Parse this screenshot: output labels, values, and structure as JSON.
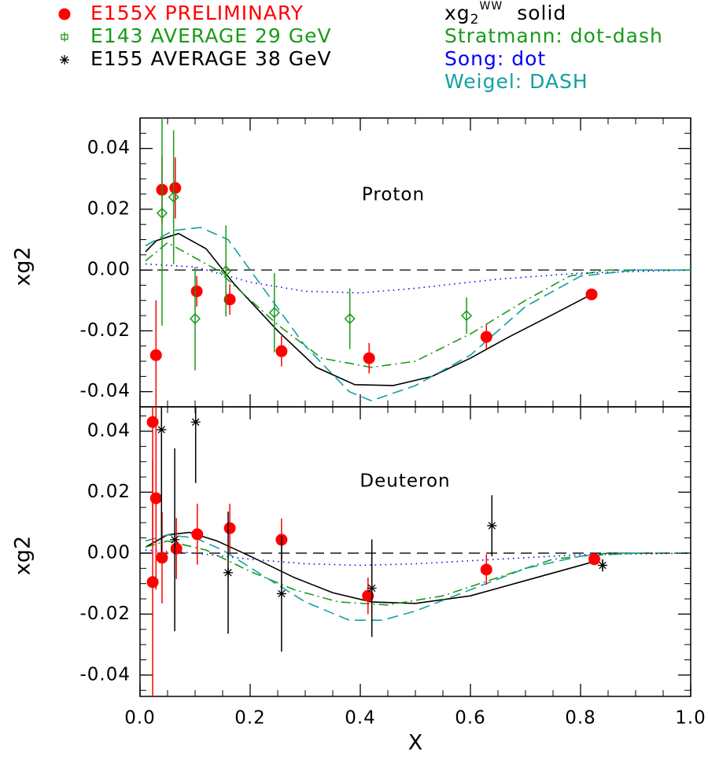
{
  "chart_data": [
    {
      "type": "scatter",
      "annotation": "Proton",
      "ylabel": "xg2",
      "xlim": [
        0,
        1
      ],
      "ylim": [
        -0.045,
        0.05
      ],
      "yticks": [
        -0.04,
        -0.02,
        {
          "value": 0,
          "label": "0.00"
        },
        0.02,
        0.04
      ],
      "zero_line": true,
      "series": [
        {
          "name": "E155X  PRELIMINARY",
          "color": "#ff0000",
          "marker": "circle",
          "x": [
            0.029,
            0.04,
            0.064,
            0.103,
            0.163,
            0.257,
            0.416,
            0.629,
            0.82
          ],
          "values": [
            -0.028,
            0.0264,
            0.027,
            -0.007,
            -0.0097,
            -0.0267,
            -0.029,
            -0.022,
            -0.008
          ],
          "errors": [
            0.018,
            0.011,
            0.01,
            0.005,
            0.005,
            0.005,
            0.005,
            0.004,
            0.001
          ]
        },
        {
          "name": "E143 AVERAGE 29 GeV",
          "color": "#1a9a1a",
          "marker": "diamond",
          "x": [
            0.04,
            0.061,
            0.1,
            0.156,
            0.244,
            0.381,
            0.593
          ],
          "values": [
            0.0187,
            0.024,
            -0.016,
            -0.0003,
            -0.014,
            -0.016,
            -0.015
          ],
          "errors": [
            0.037,
            0.022,
            0.017,
            0.015,
            0.013,
            0.01,
            0.006
          ]
        }
      ],
      "curves": [
        {
          "name_parts": [
            "xg",
            "2",
            "WW",
            "solid"
          ],
          "style": "solid",
          "color": "#000000",
          "x": [
            0.01,
            0.03,
            0.07,
            0.12,
            0.17,
            0.25,
            0.32,
            0.39,
            0.46,
            0.53,
            0.6,
            0.67,
            0.75,
            0.82
          ],
          "values": [
            0.006,
            0.0097,
            0.012,
            0.007,
            -0.0044,
            -0.02,
            -0.032,
            -0.0377,
            -0.038,
            -0.035,
            -0.029,
            -0.022,
            -0.0146,
            -0.008
          ]
        },
        {
          "name": "Stratmann: dot-dash",
          "style": "dotdash",
          "color": "#1a9a1a",
          "x": [
            0.01,
            0.05,
            0.14,
            0.25,
            0.33,
            0.42,
            0.5,
            0.6,
            0.7,
            0.78,
            0.85,
            1.0
          ],
          "values": [
            0.003,
            0.009,
            0.0,
            -0.018,
            -0.029,
            -0.032,
            -0.03,
            -0.021,
            -0.01,
            -0.002,
            0,
            0
          ]
        },
        {
          "name": "Song: dot",
          "style": "dot",
          "color": "#0000ff",
          "x": [
            0.01,
            0.1,
            0.2,
            0.3,
            0.4,
            0.5,
            0.65,
            0.8,
            1.0
          ],
          "values": [
            0.002,
            0.001,
            -0.004,
            -0.007,
            -0.0075,
            -0.006,
            -0.003,
            -0.001,
            0
          ]
        },
        {
          "name": "Weigel: DASH",
          "style": "dash",
          "color": "#13a0a0",
          "x": [
            0.01,
            0.06,
            0.11,
            0.16,
            0.22,
            0.3,
            0.38,
            0.42,
            0.5,
            0.6,
            0.7,
            0.8,
            0.9,
            1.0
          ],
          "values": [
            0.008,
            0.013,
            0.014,
            0.01,
            -0.005,
            -0.025,
            -0.04,
            -0.043,
            -0.038,
            -0.028,
            -0.012,
            -0.002,
            0,
            0
          ]
        }
      ]
    },
    {
      "type": "scatter",
      "annotation": "Deuteron",
      "ylabel": "xg2",
      "xlabel": "X",
      "xlim": [
        0,
        1
      ],
      "ylim": [
        -0.047,
        0.048
      ],
      "xticks": [
        {
          "value": 0,
          "label": "0.0"
        },
        0.2,
        0.4,
        0.6,
        0.8,
        {
          "value": 1,
          "label": "1.0"
        }
      ],
      "yticks": [
        -0.04,
        -0.02,
        {
          "value": 0,
          "label": "0.00"
        },
        0.02,
        0.04
      ],
      "zero_line": true,
      "series": [
        {
          "color": "#ff0000",
          "marker": "circle",
          "x": [
            0.023,
            0.023,
            0.029,
            0.04,
            0.066,
            0.104,
            0.163,
            0.257,
            0.414,
            0.629,
            0.825
          ],
          "values": [
            0.043,
            -0.0095,
            0.018,
            -0.0015,
            0.0015,
            0.0062,
            0.0082,
            0.0044,
            -0.014,
            -0.0054,
            -0.002
          ],
          "errors": [
            0.04,
            0.04,
            0.03,
            0.015,
            0.01,
            0.01,
            0.008,
            0.007,
            0.006,
            0.005,
            0.001
          ]
        },
        {
          "name": "E155 AVERAGE 38 GeV",
          "color": "#000000",
          "marker": "asterisk",
          "x": [
            0.039,
            0.063,
            0.101,
            0.16,
            0.257,
            0.421,
            0.639,
            0.84
          ],
          "values": [
            0.0405,
            0.0044,
            0.043,
            -0.0064,
            -0.0133,
            -0.0115,
            0.009,
            -0.004
          ],
          "errors": [
            0.04,
            0.03,
            0.02,
            0.02,
            0.019,
            0.016,
            0.01,
            0.002
          ]
        }
      ],
      "curves": [
        {
          "style": "solid",
          "color": "#000000",
          "x": [
            0.01,
            0.05,
            0.09,
            0.14,
            0.2,
            0.28,
            0.35,
            0.42,
            0.5,
            0.6,
            0.7,
            0.82
          ],
          "values": [
            0.002,
            0.006,
            0.0068,
            0.004,
            -0.001,
            -0.008,
            -0.013,
            -0.016,
            -0.0165,
            -0.014,
            -0.009,
            -0.003
          ]
        },
        {
          "style": "dotdash",
          "color": "#1a9a1a",
          "x": [
            0.01,
            0.05,
            0.12,
            0.2,
            0.28,
            0.36,
            0.45,
            0.55,
            0.65,
            0.75,
            0.85,
            1.0
          ],
          "values": [
            0.002,
            0.004,
            0.001,
            -0.006,
            -0.012,
            -0.016,
            -0.017,
            -0.014,
            -0.008,
            -0.002,
            0,
            0
          ]
        },
        {
          "style": "dot",
          "color": "#0000ff",
          "x": [
            0.01,
            0.1,
            0.2,
            0.3,
            0.4,
            0.5,
            0.65,
            0.8,
            1.0
          ],
          "values": [
            0.001,
            0,
            -0.002,
            -0.0035,
            -0.004,
            -0.0035,
            -0.002,
            -0.0005,
            0
          ]
        },
        {
          "style": "dash",
          "color": "#13a0a0",
          "x": [
            0.01,
            0.05,
            0.1,
            0.15,
            0.22,
            0.3,
            0.38,
            0.44,
            0.5,
            0.6,
            0.7,
            0.8,
            0.9
          ],
          "values": [
            0.004,
            0.006,
            0.005,
            0.001,
            -0.007,
            -0.016,
            -0.022,
            -0.022,
            -0.019,
            -0.012,
            -0.005,
            -0.001,
            0
          ]
        }
      ]
    }
  ]
}
